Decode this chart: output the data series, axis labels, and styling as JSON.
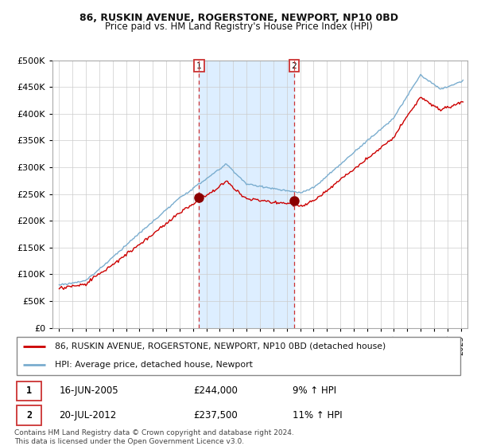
{
  "title": "86, RUSKIN AVENUE, ROGERSTONE, NEWPORT, NP10 0BD",
  "subtitle": "Price paid vs. HM Land Registry's House Price Index (HPI)",
  "legend_line1": "86, RUSKIN AVENUE, ROGERSTONE, NEWPORT, NP10 0BD (detached house)",
  "legend_line2": "HPI: Average price, detached house, Newport",
  "footer": "Contains HM Land Registry data © Crown copyright and database right 2024.\nThis data is licensed under the Open Government Licence v3.0.",
  "sale1_date": "16-JUN-2005",
  "sale1_price": "£244,000",
  "sale1_hpi": "9% ↑ HPI",
  "sale2_date": "20-JUL-2012",
  "sale2_price": "£237,500",
  "sale2_hpi": "11% ↑ HPI",
  "sale1_x": 2005.45,
  "sale1_y": 244000,
  "sale2_x": 2012.55,
  "sale2_y": 237500,
  "line_color_red": "#cc0000",
  "line_color_blue": "#7aadcf",
  "dot_color": "#8b0000",
  "vline_color": "#cc3333",
  "shade_color": "#ddeeff",
  "background_color": "#ffffff",
  "plot_bg_color": "#ffffff",
  "grid_color": "#cccccc",
  "ylim": [
    0,
    500000
  ],
  "yticks": [
    0,
    50000,
    100000,
    150000,
    200000,
    250000,
    300000,
    350000,
    400000,
    450000,
    500000
  ],
  "xlim_start": 1994.5,
  "xlim_end": 2025.5
}
